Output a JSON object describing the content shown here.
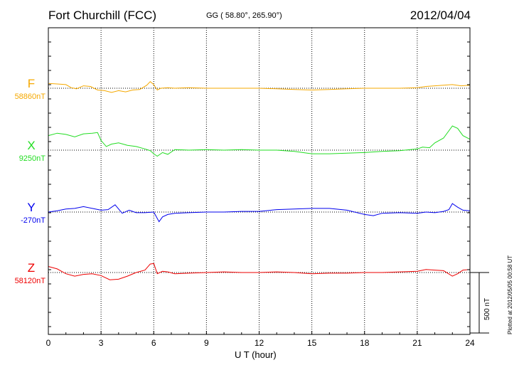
{
  "header": {
    "station": "Fort Churchill (FCC)",
    "coords": "GG ( 58.80°, 265.90°)",
    "date": "2012/04/04"
  },
  "plotted_note": "Plotted at 2012/05/05 00:58 UT",
  "scale_label": "500 nT",
  "chart_data": {
    "type": "line",
    "xlabel": "U T (hour)",
    "xlim": [
      0,
      24
    ],
    "xticks": [
      0,
      3,
      6,
      9,
      12,
      15,
      18,
      21,
      24
    ],
    "xtick_labels": [
      "0",
      "3",
      "6",
      "9",
      "12",
      "15",
      "18",
      "21",
      "24"
    ],
    "scale_bar_nT": 500,
    "grid": "dotted vertical every 3 h; dotted baseline per trace",
    "series": [
      {
        "name": "F",
        "baseline_label": "58860nT",
        "color": "#f5a800",
        "x": [
          0,
          0.5,
          1,
          1.3,
          1.6,
          2,
          2.4,
          2.8,
          3.2,
          3.6,
          4,
          4.4,
          4.8,
          5.2,
          5.6,
          5.8,
          6,
          6.2,
          6.4,
          6.8,
          7.2,
          8,
          9,
          10,
          11,
          12,
          13,
          14,
          15,
          16,
          17,
          18,
          19,
          20,
          21,
          21.5,
          22,
          22.5,
          23,
          23.5,
          24
        ],
        "y": [
          40,
          35,
          30,
          5,
          -5,
          20,
          15,
          -15,
          -20,
          -35,
          -20,
          -30,
          -15,
          -10,
          25,
          55,
          30,
          -15,
          0,
          5,
          0,
          5,
          0,
          0,
          0,
          0,
          -5,
          -10,
          -15,
          -10,
          -5,
          0,
          0,
          0,
          5,
          15,
          20,
          25,
          30,
          20,
          25
        ]
      },
      {
        "name": "X",
        "baseline_label": "9250nT",
        "color": "#22dd22",
        "x": [
          0,
          0.5,
          1,
          1.5,
          2,
          2.5,
          2.8,
          3,
          3.3,
          3.6,
          4,
          4.5,
          5,
          5.5,
          5.8,
          6,
          6.2,
          6.5,
          6.8,
          7.2,
          8,
          9,
          10,
          11,
          12,
          13,
          14,
          15,
          16,
          17,
          18,
          19,
          20,
          21,
          21.3,
          21.7,
          22,
          22.5,
          23,
          23.3,
          23.6,
          24
        ],
        "y": [
          120,
          140,
          130,
          110,
          135,
          140,
          145,
          80,
          30,
          50,
          60,
          40,
          30,
          10,
          -5,
          -30,
          -50,
          -20,
          -35,
          5,
          0,
          5,
          0,
          5,
          0,
          0,
          -10,
          -30,
          -30,
          -25,
          -20,
          -10,
          -5,
          10,
          25,
          20,
          60,
          100,
          200,
          180,
          120,
          90
        ]
      },
      {
        "name": "Y",
        "baseline_label": "-270nT",
        "color": "#0000ee",
        "x": [
          0,
          0.5,
          1,
          1.5,
          2,
          2.5,
          3,
          3.4,
          3.8,
          4.2,
          4.6,
          5,
          5.5,
          6,
          6.3,
          6.5,
          6.8,
          7.2,
          8,
          9,
          10,
          11,
          12,
          13,
          14,
          15,
          16,
          17,
          18,
          18.5,
          19,
          20,
          21,
          21.5,
          22,
          22.5,
          22.8,
          23,
          23.3,
          23.6,
          24
        ],
        "y": [
          0,
          10,
          25,
          30,
          45,
          30,
          15,
          20,
          60,
          -10,
          15,
          -5,
          -5,
          0,
          -80,
          -40,
          -20,
          -10,
          -5,
          0,
          0,
          5,
          5,
          20,
          25,
          30,
          30,
          15,
          -20,
          -30,
          -10,
          -5,
          -10,
          0,
          -5,
          5,
          20,
          70,
          40,
          15,
          10
        ]
      },
      {
        "name": "Z",
        "baseline_label": "58120nT",
        "color": "#ee0000",
        "x": [
          0,
          0.5,
          1,
          1.5,
          2,
          2.5,
          3,
          3.5,
          4,
          4.5,
          5,
          5.5,
          5.8,
          6,
          6.2,
          6.5,
          6.8,
          7.2,
          8,
          9,
          10,
          11,
          12,
          13,
          14,
          15,
          16,
          17,
          18,
          19,
          20,
          21,
          21.5,
          22,
          22.5,
          23,
          23.3,
          23.6,
          24
        ],
        "y": [
          50,
          30,
          -10,
          -30,
          -15,
          -10,
          -25,
          -60,
          -55,
          -30,
          0,
          20,
          70,
          75,
          -10,
          10,
          5,
          -10,
          -5,
          0,
          5,
          0,
          0,
          5,
          0,
          -10,
          -5,
          -5,
          0,
          0,
          5,
          10,
          25,
          20,
          15,
          -30,
          -10,
          20,
          25
        ]
      }
    ]
  }
}
